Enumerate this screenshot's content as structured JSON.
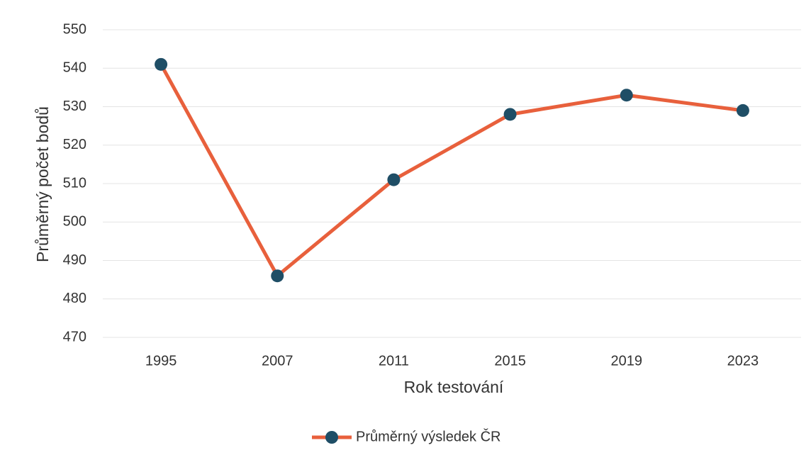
{
  "chart_data": {
    "type": "line",
    "x_label": "Rok testování",
    "y_label": "Průměrný počet bodů",
    "categories": [
      "1995",
      "2007",
      "2011",
      "2015",
      "2019",
      "2023"
    ],
    "series": [
      {
        "name": "Průměrný výsledek ČR",
        "color": "#e8603c",
        "marker_color": "#1f4e66",
        "values": [
          541,
          486,
          511,
          528,
          533,
          529
        ]
      }
    ],
    "ylim": [
      470,
      550
    ],
    "yticks": [
      470,
      480,
      490,
      500,
      510,
      520,
      530,
      540,
      550
    ],
    "grid": true,
    "legend": "bottom"
  }
}
